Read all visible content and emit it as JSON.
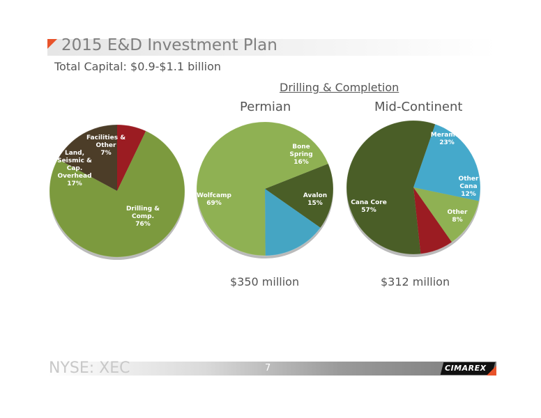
{
  "slide": {
    "title": "2015 E&D Investment Plan",
    "subtitle": "Total Capital: $0.9-$1.1 billion",
    "group_title": "Drilling & Completion",
    "footer_ticker": "NYSE: XEC",
    "page_number": "7",
    "logo_text": "CIMAREX"
  },
  "colors": {
    "accent": "#e8532b",
    "text": "#555555"
  },
  "chart_data": [
    {
      "type": "pie",
      "title": "",
      "amount": "",
      "slices": [
        {
          "label_lines": [
            "Facilities &",
            "Other"
          ],
          "percent_label": "7%",
          "value": 7,
          "color": "#9b1c22"
        },
        {
          "label_lines": [
            "Drilling &",
            "Comp."
          ],
          "percent_label": "76%",
          "value": 76,
          "color": "#7c9a3e"
        },
        {
          "label_lines": [
            "Land,",
            "Seismic &",
            "Cap.",
            "Overhead"
          ],
          "percent_label": "17%",
          "value": 17,
          "color": "#4c3d28"
        }
      ]
    },
    {
      "type": "pie",
      "title": "Permian",
      "amount": "$350 million",
      "slices": [
        {
          "label_lines": [
            "Bone",
            "Spring"
          ],
          "percent_label": "16%",
          "value": 16,
          "color": "#4a5e27"
        },
        {
          "label_lines": [
            "Avalon"
          ],
          "percent_label": "15%",
          "value": 15,
          "color": "#45a5c3"
        },
        {
          "label_lines": [
            "Wolfcamp"
          ],
          "percent_label": "69%",
          "value": 69,
          "color": "#8fb153"
        }
      ]
    },
    {
      "type": "pie",
      "title": "Mid-Continent",
      "amount": "$312 million",
      "slices": [
        {
          "label_lines": [
            "Meramec"
          ],
          "percent_label": "23%",
          "value": 23,
          "color": "#45a9cb"
        },
        {
          "label_lines": [
            "Other",
            "Cana"
          ],
          "percent_label": "12%",
          "value": 12,
          "color": "#8fb153"
        },
        {
          "label_lines": [
            "Other"
          ],
          "percent_label": "8%",
          "value": 8,
          "color": "#9b1c22"
        },
        {
          "label_lines": [
            "Cana Core"
          ],
          "percent_label": "57%",
          "value": 57,
          "color": "#4a5e27"
        }
      ]
    }
  ]
}
